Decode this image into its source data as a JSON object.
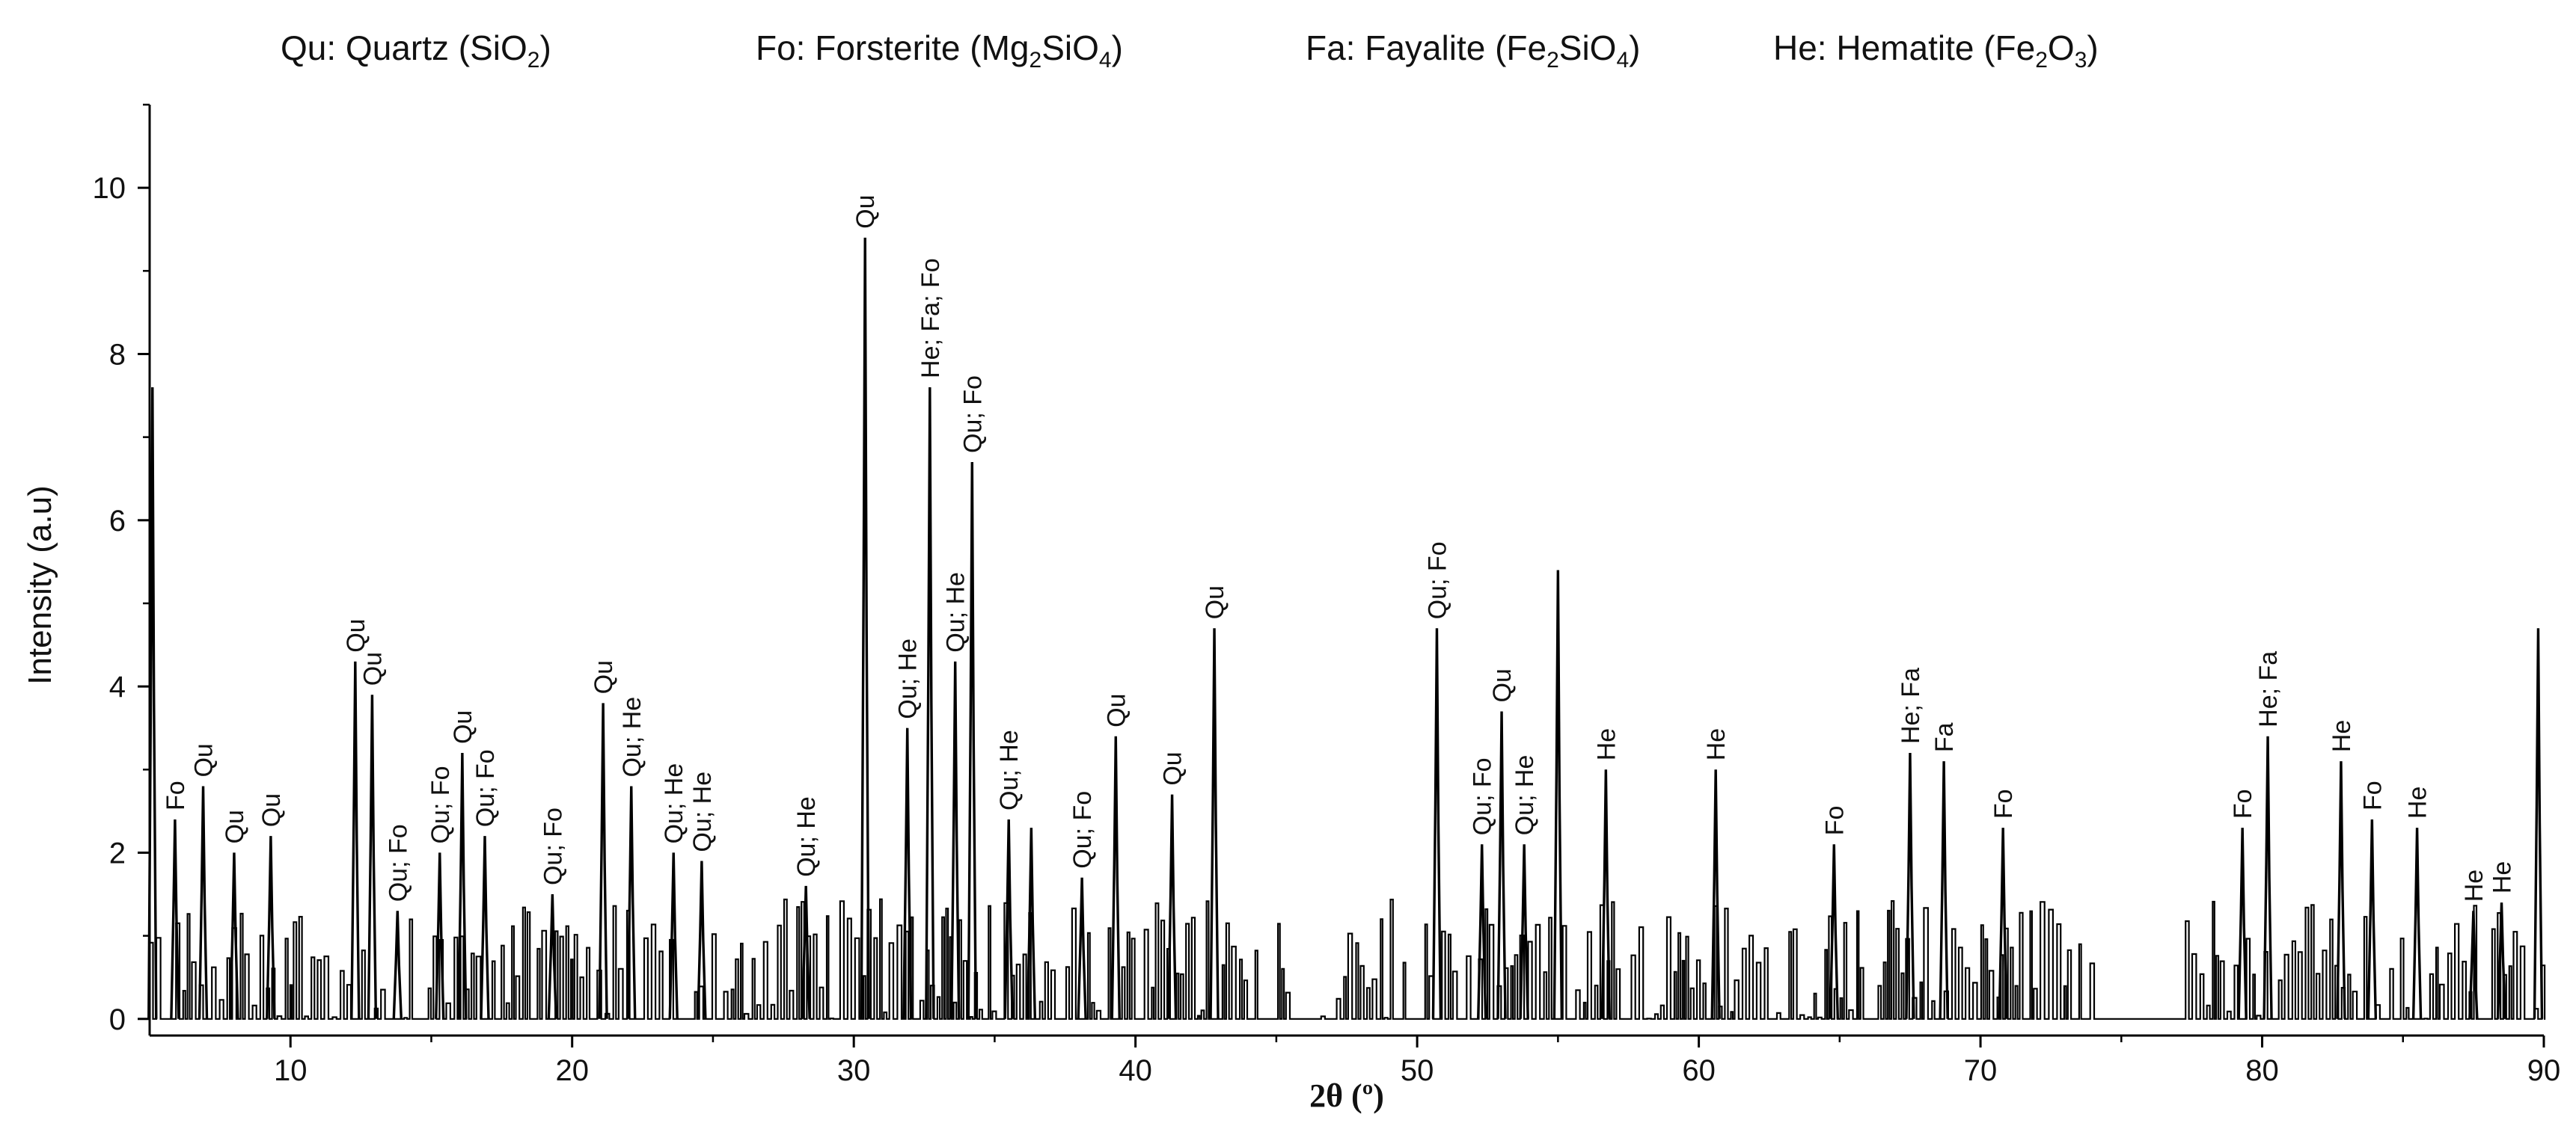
{
  "legend": [
    {
      "main": "Qu: Quartz (SiO",
      "sub": "2",
      "tail": ")"
    },
    {
      "main": "Fo: Forsterite (Mg",
      "sub": "2",
      "mid": "SiO",
      "sub2": "4",
      "tail": ")"
    },
    {
      "main": "Fa: Fayalite (Fe",
      "sub": "2",
      "mid": "SiO",
      "sub2": "4",
      "tail": ")"
    },
    {
      "main": "He: Hematite (Fe",
      "sub": "2",
      "mid": "O",
      "sub2": "3",
      "tail": ")"
    }
  ],
  "chart_data": {
    "type": "line",
    "xlabel": "2θ (º)",
    "ylabel": "Intensity (a.u)",
    "xlim": [
      5,
      90
    ],
    "ylim": [
      -0.2,
      11
    ],
    "xticks": [
      10,
      20,
      30,
      40,
      50,
      60,
      70,
      80,
      90
    ],
    "yticks": [
      0,
      2,
      4,
      6,
      8,
      10
    ],
    "grid": false,
    "legend_position": "top",
    "series_color": "#000000",
    "peaks": [
      {
        "x": 5.1,
        "y": 7.6,
        "label": ""
      },
      {
        "x": 5.9,
        "y": 2.4,
        "label": "Fo"
      },
      {
        "x": 6.9,
        "y": 2.8,
        "label": "Qu"
      },
      {
        "x": 8.0,
        "y": 2.0,
        "label": "Qu"
      },
      {
        "x": 9.3,
        "y": 2.2,
        "label": "Qu"
      },
      {
        "x": 12.3,
        "y": 4.3,
        "label": "Qu"
      },
      {
        "x": 12.9,
        "y": 3.9,
        "label": "Qu"
      },
      {
        "x": 13.8,
        "y": 1.3,
        "label": "Qu; Fo"
      },
      {
        "x": 15.3,
        "y": 2.0,
        "label": "Qu; Fo"
      },
      {
        "x": 16.1,
        "y": 3.2,
        "label": "Qu"
      },
      {
        "x": 16.9,
        "y": 2.2,
        "label": "Qu; Fo"
      },
      {
        "x": 19.3,
        "y": 1.5,
        "label": "Qu; Fo"
      },
      {
        "x": 21.1,
        "y": 3.8,
        "label": "Qu"
      },
      {
        "x": 22.1,
        "y": 2.8,
        "label": "Qu; He"
      },
      {
        "x": 23.6,
        "y": 2.0,
        "label": "Qu; He"
      },
      {
        "x": 24.6,
        "y": 1.9,
        "label": "Qu; He"
      },
      {
        "x": 28.3,
        "y": 1.6,
        "label": "Qu; He"
      },
      {
        "x": 30.4,
        "y": 9.4,
        "label": "Qu"
      },
      {
        "x": 31.9,
        "y": 3.5,
        "label": "Qu; He"
      },
      {
        "x": 32.7,
        "y": 7.6,
        "label": "He; Fa; Fo"
      },
      {
        "x": 33.6,
        "y": 4.3,
        "label": "Qu; He"
      },
      {
        "x": 34.2,
        "y": 6.7,
        "label": "Qu; Fo"
      },
      {
        "x": 35.5,
        "y": 2.4,
        "label": "Qu; He"
      },
      {
        "x": 36.3,
        "y": 2.3,
        "label": ""
      },
      {
        "x": 38.1,
        "y": 1.7,
        "label": "Qu; Fo"
      },
      {
        "x": 39.3,
        "y": 3.4,
        "label": "Qu"
      },
      {
        "x": 41.3,
        "y": 2.7,
        "label": "Qu"
      },
      {
        "x": 42.8,
        "y": 4.7,
        "label": "Qu"
      },
      {
        "x": 50.7,
        "y": 4.7,
        "label": "Qu; Fo"
      },
      {
        "x": 52.3,
        "y": 2.1,
        "label": "Qu; Fo"
      },
      {
        "x": 53.0,
        "y": 3.7,
        "label": "Qu"
      },
      {
        "x": 53.8,
        "y": 2.1,
        "label": "Qu; He"
      },
      {
        "x": 55.0,
        "y": 5.4,
        "label": ""
      },
      {
        "x": 56.7,
        "y": 3.0,
        "label": "He"
      },
      {
        "x": 60.6,
        "y": 3.0,
        "label": "He"
      },
      {
        "x": 64.8,
        "y": 2.1,
        "label": "Fo"
      },
      {
        "x": 67.5,
        "y": 3.2,
        "label": "He; Fa"
      },
      {
        "x": 68.7,
        "y": 3.1,
        "label": "Fa"
      },
      {
        "x": 70.8,
        "y": 2.3,
        "label": "Fo"
      },
      {
        "x": 79.3,
        "y": 2.3,
        "label": "Fo"
      },
      {
        "x": 80.2,
        "y": 3.4,
        "label": "He; Fa"
      },
      {
        "x": 82.8,
        "y": 3.1,
        "label": "He"
      },
      {
        "x": 83.9,
        "y": 2.4,
        "label": "Fo"
      },
      {
        "x": 85.5,
        "y": 2.3,
        "label": "He"
      },
      {
        "x": 87.5,
        "y": 1.3,
        "label": "He"
      },
      {
        "x": 88.5,
        "y": 1.4,
        "label": "He"
      },
      {
        "x": 89.8,
        "y": 4.7,
        "label": ""
      }
    ]
  }
}
